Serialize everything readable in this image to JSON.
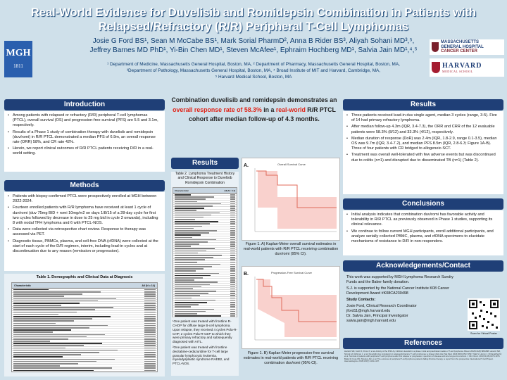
{
  "title_line1": "Real-World Evidence for Duvelisib and Romidepsin Combination in Patients with",
  "title_line2": "Relapsed/Refractory (R/R) Peripheral T-Cell Lymphomas",
  "authors_line1": "Josie G Ford BS¹, Sean M McCabe BS¹, Mark Sorial PharmD², Anna B Rider BS³, Aliyah Sohani MD³,⁵,",
  "authors_line2": "Jeffrey Barnes MD PhD¹, Yi-Bin Chen MD¹, Steven McAfee¹, Ephraim Hochberg MD¹, Salvia Jain MD¹,⁴,⁵",
  "affil_line1": "¹ Department of Medicine, Massachusetts General Hospital, Boston, MA, ² Department of Pharmacy, Massachusetts General Hospital, Boston, MA,",
  "affil_line2": "³Department of Pathology, Massachusetts General Hospital, Boston, MA, ⁴ Broad Institute of MIT and Harvard, Cambridge, MA,",
  "affil_line3": "⁵ Harvard Medical School, Boston, MA",
  "logos": {
    "mgh_text": "MGH",
    "mgh_year": "1811",
    "cc_line1": "MASSACHUSETTS",
    "cc_line2": "GENERAL HOSPITAL",
    "cc_line3": "CANCER CENTER",
    "harvard": "HARVARD",
    "hms": "MEDICAL SCHOOL"
  },
  "intro": {
    "header": "Introduction",
    "bullets": [
      "Among patients with relapsed or refractory (R/R) peripheral T-cell lymphomas (PTCL), overall survival (OS) and progression-free survival (PFS) are 5.5 and 3.1m, respectively.",
      "Results of a Phase 1 study of combination therapy with duvelisib and romidepsin (duv/romi) in R/R PTCL demonstrated a median PFS of 6.9m, an overall response rate (ORR) 58%, and CR rate 42%.",
      "Herein, we report clinical outcomes of R/R PTCL patients receiving D/R in a real-world setting."
    ]
  },
  "methods": {
    "header": "Methods",
    "bullets": [
      "Patients with biopsy-confirmed PTCL were prospectively enrolled at MGH between 2022-2024.",
      "Fourteen enrolled patients with R/R lymphoma have received at least 1 cycle of duv/romi (duv 75mg BID + romi 10mg/m2 on days 1/8/15 of a 28-day cycle for first two cycles followed by decrease in dose to 25 mg bid in cycle 3 onwards), including 8 with nodal TFH lymphoma and 6 with PTCL-NOS.",
      "Data were collected via retrospective chart review. Response to therapy was assessed via PET.",
      "Diagnostic tissue, PBMCs, plasma, and cell-free DNA (cfDNA) were collected at the start of each cycle of the D/R regimen, interim, including lead-in cycles and at discontinuation due to any reason (remission or progression)."
    ]
  },
  "table1": {
    "caption": "Table 1. Demographic and Clinical Data at Diagnosis",
    "col1": "Characteristic",
    "col2": "All (N = 14)"
  },
  "statement": {
    "pre": "Combination duvelisib and romidepsin demonstrates an ",
    "red1": "overall response rate of 58.3%",
    "mid": " in a ",
    "red2": "real-world",
    "post": " R/R PTCL cohort after median follow-up of 4.3 months."
  },
  "results_center": {
    "header": "Results",
    "table2_caption": "Table 2. Lymphoma Treatment History and Clinical Response to Duvelisib Romidepsin Combination",
    "table2_col1": "Characteristic",
    "table2_col2": "All (N = 14)",
    "footnote1": "¹One patient was treated with frontline R-CHOP for diffuse large B-cell lymphoma. Upon relapse, they received 4 cycles Pola-R-CHP, 2 cycles Pola-R-CEP to which they were primary refractory and subsequently diagnosed with AITL.",
    "footnote2": "²One patient was treated with frontline decitabine-cedazuridine for T-cell large granular lymphocytic leukemia, myelodysplastic syndrome RAEB2, and PTCL-NOS."
  },
  "figures": {
    "figA_title": "Overall Survival Curve",
    "figA_label": "A.",
    "figA_caption": "Figure 1. A) Kaplan-Meier overall survival estimates in real-world patients with R/R PTCL receiving combination duv/romi (95% CI).",
    "figB_title": "Progression-Free Survival Curve",
    "figB_label": "B.",
    "figB_caption": "Figure 1. B) Kaplan-Meier progression-free survival estimates in real-world patients with R/R PTCL receiving combination duv/romi (95% CI)."
  },
  "results_right": {
    "header": "Results",
    "bullets": [
      "Three patients received lead-in duv single agent, median 3 cycles (range, 3-5). Five of 14 had primary refractory lymphoma.",
      "After median follow-up 4.3m (IQR, 3.4-7.3), the ORR and CRR of the 12 evaluable patients were 58.3% (8/12) and 33.3% (4/12), respectively.",
      "Median duration of response (DoR) was 2.4m (IQR, 1.8-2.9, range 0.1-3.5), median OS was 9.7m (IQR, 3.4-7.2), and median PFS 8.5m (IQR, 2.8-6.3; Figure 1A-B). Three of four patients with CR bridged to allogeneic-SCT.",
      "Treatment was overall well-tolerated with few adverse events but was discontinued due to colitis (n=1) and disrupted due to disseminated TB (n=1) (Table 2)."
    ]
  },
  "conclusions": {
    "header": "Conclusions",
    "bullets": [
      "Initial analysis indicates that combination duv/romi has favorable activity and tolerability in R/R PTCL as previously observed in Phase 1 studies, supporting its clinical relevance.",
      "We continue to follow current MGH participants, enroll additional participants, and analyze serially collected PBMC, plasma, and cfDNA specimens to elucidate mechanisms of resistance to D/R in non-responders."
    ]
  },
  "ack": {
    "header": "Acknowledgements/Contact",
    "p1": "This work was supported by MGH Lymphoma Research Sundry Funds and the Baker family donation.",
    "p2": "S.J. is supported by the National Cancer Institute K08 Career Development Award #K08CA230498",
    "contacts_label": "Study Contacts:",
    "c1": "Josie Ford, Clinical Research Coordinator",
    "c2": "jford11@mgh.harvard.edu",
    "c3": "Dr. Salvia Jain, Principal Investigator",
    "c4": "salvia.jain@mgh.harvard.edu",
    "qr_caption": "Scan for Virtual Poster"
  },
  "references": {
    "header": "References",
    "text": "Horwitz SM, Koch R, Porcu P, et al. Activity of the PI3K-δ,γ inhibitor duvelisib in a phase 1 trial and preclinical models of T-cell lymphoma. Blood. 2018;131(8):888-898. Horwitz SM, Nirmal AJ, Rahman J, et al. Duvelisib plus romidepsin in relapsed/refractory T cell lymphomas: a phase 1b/2a trial. Nat Med. 2024;30(9):2517-2527. Mak V, Hamm J, Chhanabhai M, et al. Survival of patients with peripheral T-cell lymphoma after first relapse or progression: spectrum of disease and rare long-term survivors. J Clin Oncol. 2013;31(16):1970-1976. Bellei M, Foss FM, Shustov AR, et al. The outcome of peripheral T-cell lymphoma patients failing first-line therapy: a report from the prospective International T-Cell Project. Haematologica. 2018;103(7):1191-1197."
  }
}
